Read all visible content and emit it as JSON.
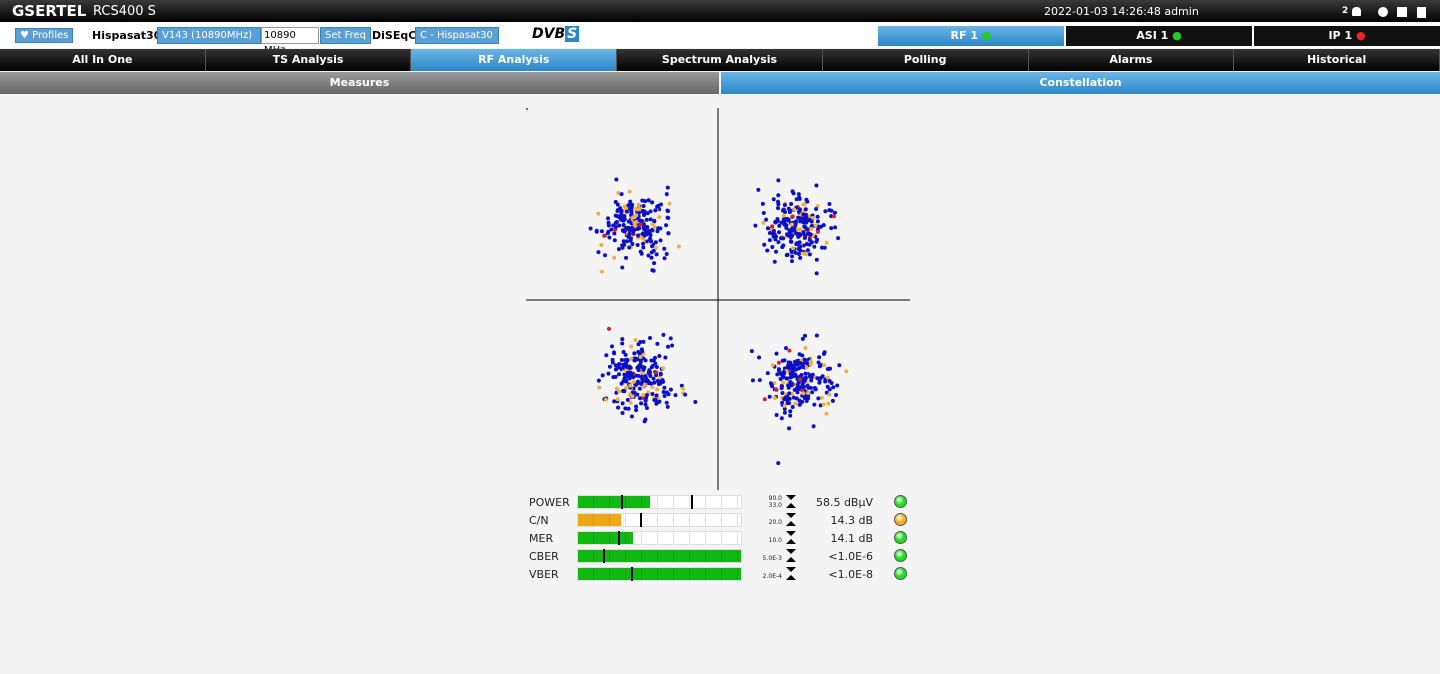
{
  "header": {
    "brand": "GSERTEL",
    "model": "RCS400 S",
    "datetime": "2022-01-03 14:26:48 admin",
    "user_count": "2"
  },
  "toolbar": {
    "profiles": "Profiles",
    "satellite": "Hispasat30",
    "transponder": "V143 (10890MHz)",
    "frequency": "10890 MHz",
    "set_freq": "Set Freq",
    "diseqc_label": "DiSEqC",
    "diseqc": "C - Hispasat30",
    "logo": "DVB",
    "logo_suffix": "S"
  },
  "status_tabs": [
    "RF 1",
    "ASI 1",
    "IP 1"
  ],
  "nav": [
    "All In One",
    "TS Analysis",
    "RF Analysis",
    "Spectrum Analysis",
    "Polling",
    "Alarms",
    "Historical"
  ],
  "subnav": [
    "Measures",
    "Constellation"
  ],
  "measures": [
    {
      "name": "POWER",
      "thresholds": [
        "90.0",
        "33.0"
      ],
      "value": "58.5 dBµV"
    },
    {
      "name": "C/N",
      "thresholds": [
        "20.0"
      ],
      "value": "14.3 dB"
    },
    {
      "name": "MER",
      "thresholds": [
        "10.0"
      ],
      "value": "14.1 dB"
    },
    {
      "name": "CBER",
      "thresholds": [
        "5.0E-3"
      ],
      "value": "<1.0E-6"
    },
    {
      "name": "VBER",
      "thresholds": [
        "2.0E-4"
      ],
      "value": "<1.0E-8"
    }
  ]
}
